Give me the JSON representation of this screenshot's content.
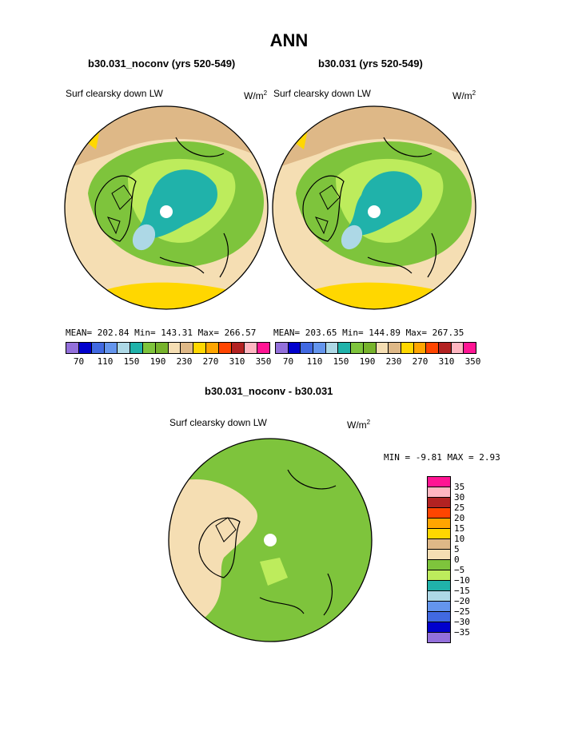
{
  "title": "ANN",
  "panels": [
    {
      "case_title": "b30.031_noconv (yrs 520-549)",
      "field": "Surf clearsky down LW",
      "units": "W/m",
      "units_exp": "2",
      "stats": "MEAN= 202.84  Min= 143.31  Max= 266.57"
    },
    {
      "case_title": "b30.031 (yrs 520-549)",
      "field": "Surf clearsky down LW",
      "units": "W/m",
      "units_exp": "2",
      "stats": "MEAN= 203.65  Min= 144.89  Max= 267.35"
    }
  ],
  "diff": {
    "title": "b30.031_noconv - b30.031",
    "field": "Surf clearsky down LW",
    "units": "W/m",
    "units_exp": "2",
    "stats": "MIN =  -9.81 MAX =   2.93"
  },
  "chart_data": [
    {
      "type": "heatmap",
      "projection": "north polar stereographic",
      "title": "b30.031_noconv (yrs 520-549)",
      "field": "Surf clearsky down LW",
      "units": "W/m2",
      "mean": 202.84,
      "min": 143.31,
      "max": 266.57,
      "colorbar_ticks": [
        "70",
        "110",
        "150",
        "190",
        "230",
        "270",
        "310",
        "350"
      ],
      "colorbar_levels": 16
    },
    {
      "type": "heatmap",
      "projection": "north polar stereographic",
      "title": "b30.031 (yrs 520-549)",
      "field": "Surf clearsky down LW",
      "units": "W/m2",
      "mean": 203.65,
      "min": 144.89,
      "max": 267.35,
      "colorbar_ticks": [
        "70",
        "110",
        "150",
        "190",
        "230",
        "270",
        "310",
        "350"
      ],
      "colorbar_levels": 16
    },
    {
      "type": "heatmap",
      "projection": "north polar stereographic",
      "title": "b30.031_noconv - b30.031",
      "field": "Surf clearsky down LW",
      "units": "W/m2",
      "min": -9.81,
      "max": 2.93,
      "colorbar_ticks": [
        "35",
        "30",
        "25",
        "20",
        "15",
        "10",
        "5",
        "0",
        "−5",
        "−10",
        "−15",
        "−20",
        "−25",
        "−30",
        "−35"
      ],
      "colorbar_levels": 16
    }
  ],
  "palette": [
    "#9370db",
    "#0000cd",
    "#4169e1",
    "#6495ed",
    "#add8e6",
    "#20b2aa",
    "#7ec43c",
    "#77b32c",
    "#bdec5c",
    "#f5deb3",
    "#deb887",
    "#ffd700",
    "#ffa500",
    "#ff4500",
    "#b22222",
    "#ff1493"
  ]
}
